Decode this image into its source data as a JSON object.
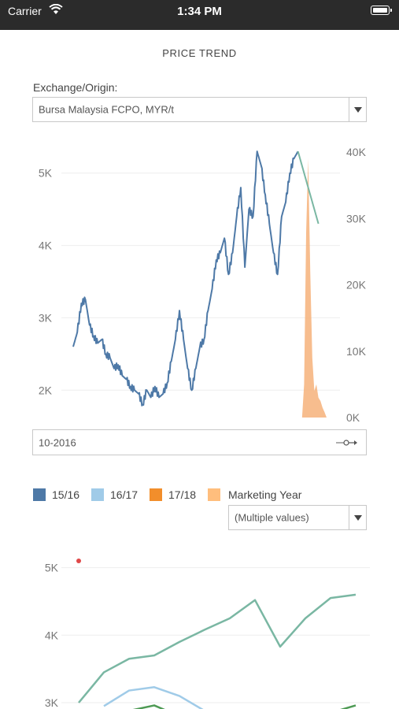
{
  "status_bar": {
    "carrier": "Carrier",
    "time": "1:34 PM"
  },
  "page": {
    "title": "PRICE TREND"
  },
  "filters": {
    "exchange_label": "Exchange/Origin:",
    "exchange_value": "Bursa Malaysia FCPO, MYR/t",
    "date_value": "10-2016"
  },
  "legend": {
    "items": [
      {
        "label": "15/16",
        "color": "#4e79a7"
      },
      {
        "label": "16/17",
        "color": "#a0cbe8"
      },
      {
        "label": "17/18",
        "color": "#f28e2b"
      },
      {
        "label": "",
        "color": "#ffbe7d"
      }
    ],
    "title": "Marketing Year",
    "select_value": "(Multiple values)"
  },
  "chart_data": [
    {
      "type": "line",
      "title": "",
      "left_axis": {
        "ticks": [
          "5K",
          "4K",
          "3K",
          "2K"
        ],
        "values": [
          5000,
          4000,
          3000,
          2000
        ],
        "ylim": [
          1600,
          5400
        ]
      },
      "right_axis": {
        "ticks": [
          "40K",
          "30K",
          "20K",
          "10K",
          "0K"
        ],
        "values": [
          40000,
          30000,
          20000,
          10000,
          0
        ],
        "ylim": [
          0,
          40000
        ]
      },
      "grid": true,
      "series": [
        {
          "color": "#4e79a7",
          "axis": "left",
          "x": [
            0,
            1,
            2,
            3,
            4,
            5,
            6,
            7,
            8,
            9,
            10,
            11,
            12,
            13,
            14,
            15,
            16,
            17,
            18,
            19,
            20,
            21,
            22,
            23,
            24,
            25,
            26,
            27,
            28,
            29,
            30,
            31,
            32,
            33,
            34,
            35,
            36,
            37,
            38,
            39,
            40,
            41,
            42,
            43,
            44,
            45,
            46,
            47,
            48,
            49,
            50,
            51,
            52,
            53,
            54,
            55
          ],
          "y": [
            2600,
            2800,
            3200,
            3250,
            2900,
            2750,
            2650,
            2700,
            2500,
            2450,
            2300,
            2350,
            2200,
            2150,
            2050,
            2000,
            1950,
            1800,
            2000,
            1900,
            2050,
            1900,
            1950,
            2100,
            2400,
            2700,
            3100,
            2700,
            2300,
            2000,
            2300,
            2600,
            2700,
            3100,
            3400,
            3800,
            3900,
            4100,
            3600,
            3900,
            4400,
            4800,
            3700,
            4500,
            4400,
            5300,
            5100,
            4700,
            4300,
            3900,
            3600,
            4400,
            4600,
            5000,
            5200,
            5300
          ]
        },
        {
          "color": "#7ab7a3",
          "axis": "left",
          "x": [
            55,
            60
          ],
          "y": [
            5300,
            4300
          ]
        },
        {
          "color": "#f6b27a",
          "axis": "right",
          "type": "area",
          "x": [
            56,
            56.5,
            57,
            57.5,
            58,
            58.5,
            59,
            59.5,
            60,
            60.5,
            61,
            61.5,
            62
          ],
          "y": [
            0,
            5000,
            28000,
            39000,
            22000,
            9000,
            4000,
            5000,
            3000,
            2500,
            1500,
            800,
            0
          ]
        }
      ]
    },
    {
      "type": "line",
      "title": "",
      "y_axis": {
        "ticks": [
          "5K",
          "4K",
          "3K"
        ],
        "values": [
          5000,
          4000,
          3000
        ],
        "ylim": [
          2900,
          5400
        ]
      },
      "grid": true,
      "series": [
        {
          "color": "#7ab7a3",
          "x": [
            0,
            1,
            2,
            3,
            4,
            5,
            6,
            7,
            8,
            9,
            10,
            11
          ],
          "y": [
            3000,
            3450,
            3650,
            3700,
            3900,
            4080,
            4250,
            4520,
            3830,
            4250,
            4550,
            4600
          ]
        },
        {
          "color": "#a0cbe8",
          "x": [
            1,
            2,
            3,
            4,
            5
          ],
          "y": [
            2950,
            3180,
            3230,
            3100,
            2880
          ]
        },
        {
          "color": "#4e9a54",
          "x": [
            2,
            3,
            4,
            10,
            11
          ],
          "y": [
            2880,
            2960,
            2800,
            2850,
            2960
          ]
        },
        {
          "color": "#e04848",
          "x": [
            0
          ],
          "y": [
            5100
          ],
          "type": "point"
        }
      ]
    }
  ]
}
